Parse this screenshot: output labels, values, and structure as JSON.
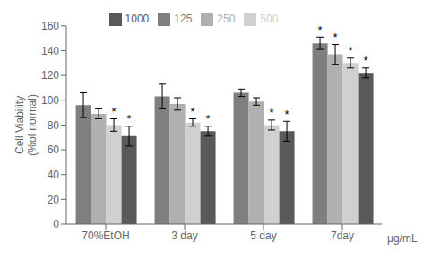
{
  "chart_data": {
    "type": "bar",
    "categories": [
      "70%EtOH",
      "3 day",
      "5 day",
      "7day"
    ],
    "series": [
      {
        "name": "125",
        "color": "#7f7f7f",
        "values": [
          96,
          103,
          106,
          146
        ],
        "errors": [
          10,
          10,
          3,
          5
        ],
        "annotations": [
          null,
          null,
          null,
          "*"
        ]
      },
      {
        "name": "250",
        "color": "#b0b0b0",
        "values": [
          89,
          97,
          99,
          137
        ],
        "errors": [
          4,
          5,
          3,
          8
        ],
        "annotations": [
          null,
          null,
          null,
          "*"
        ]
      },
      {
        "name": "500",
        "color": "#d0d0d0",
        "values": [
          80,
          82,
          80,
          130
        ],
        "errors": [
          5,
          3,
          4,
          4
        ],
        "annotations": [
          "*",
          "*",
          "*",
          "*"
        ]
      },
      {
        "name": "1000",
        "color": "#595959",
        "values": [
          71,
          75,
          75,
          122
        ],
        "errors": [
          8,
          4,
          8,
          4
        ],
        "annotations": [
          "*",
          "*",
          "*",
          "*"
        ]
      }
    ],
    "ylabel": "Cell Viability\n(%of normal)",
    "xlabel": "μg/mL",
    "ylim": [
      0,
      160
    ],
    "yticks": [
      0,
      20,
      40,
      60,
      80,
      100,
      120,
      140,
      160
    ],
    "grid": false,
    "legend": "top"
  }
}
